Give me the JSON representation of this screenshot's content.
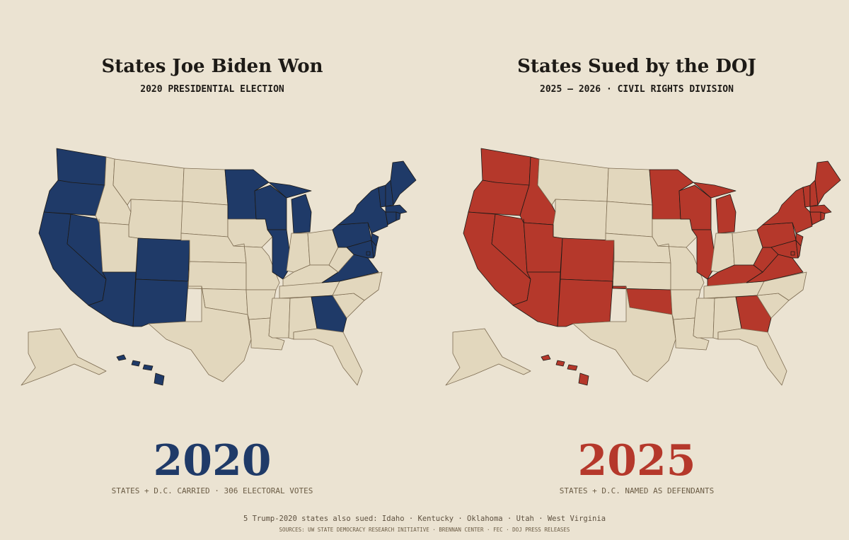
{
  "left": {
    "title": "States Joe Biden Won",
    "subtitle": "2020 PRESIDENTIAL ELECTION",
    "big_label": "2020",
    "caption": "STATES + D.C. CARRIED · 306 ELECTORAL VOTES",
    "color": "#1f3a68"
  },
  "right": {
    "title": "States Sued by the DOJ",
    "subtitle": "2025 – 2026 · CIVIL RIGHTS DIVISION",
    "big_label": "2025",
    "caption": "STATES + D.C. NAMED AS DEFENDANTS",
    "color": "#b5382b"
  },
  "footer": {
    "note": "5 Trump-2020 states also sued: Idaho · Kentucky · Oklahoma · Utah · West Virginia",
    "sources": "SOURCES: UW STATE DEMOCRACY RESEARCH INITIATIVE · BRENNAN CENTER · FEC · DOJ PRESS RELEASES"
  },
  "base_color": "#e2d7bd"
}
